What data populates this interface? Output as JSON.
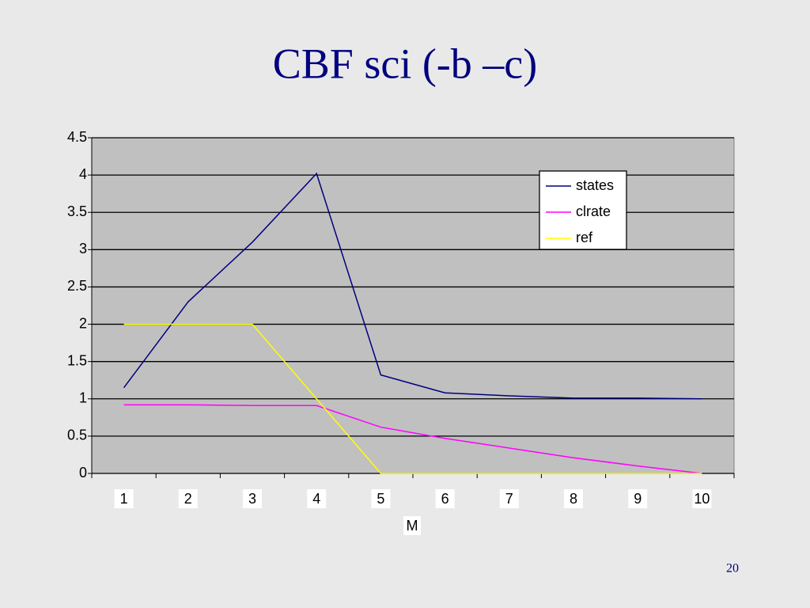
{
  "chart_data": {
    "type": "line",
    "title": "CBF sci (-b –c)",
    "x_label": "M",
    "categories": [
      "1",
      "2",
      "3",
      "4",
      "5",
      "6",
      "7",
      "8",
      "9",
      "10"
    ],
    "series": [
      {
        "name": "states",
        "color": "#000080",
        "values": [
          1.15,
          2.3,
          3.1,
          4.02,
          1.32,
          1.08,
          1.04,
          1.01,
          1.01,
          1.0
        ]
      },
      {
        "name": "clrate",
        "color": "#ff00ff",
        "values": [
          0.92,
          0.92,
          0.91,
          0.91,
          0.62,
          0.47,
          0.34,
          0.21,
          0.1,
          0.0
        ]
      },
      {
        "name": "ref",
        "color": "#ffff00",
        "values": [
          2,
          2,
          2,
          1,
          0,
          0,
          0,
          0,
          0,
          0
        ]
      }
    ],
    "ylim": [
      0,
      4.5
    ],
    "yticks": [
      0,
      0.5,
      1,
      1.5,
      2,
      2.5,
      3,
      3.5,
      4,
      4.5
    ],
    "grid": true,
    "plot_background": "#c0c0c0",
    "legend_position": "upper right"
  },
  "page_number": "20"
}
